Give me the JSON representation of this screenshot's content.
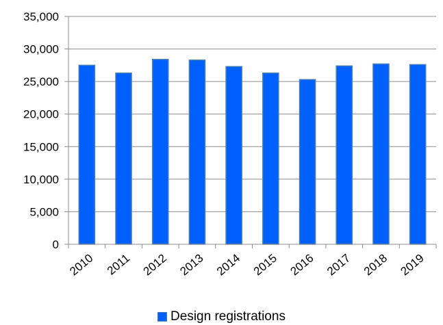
{
  "chart_data": {
    "type": "bar",
    "categories": [
      "2010",
      "2011",
      "2012",
      "2013",
      "2014",
      "2015",
      "2016",
      "2017",
      "2018",
      "2019"
    ],
    "series": [
      {
        "name": "Design registrations",
        "values": [
          27500,
          26300,
          28400,
          28300,
          27300,
          26300,
          25300,
          27400,
          27700,
          27600
        ],
        "color": "#0060ff",
        "edge_color": "#4a7fb5"
      }
    ],
    "ylim": [
      0,
      35000
    ],
    "yticks": [
      "0",
      "5,000",
      "10,000",
      "15,000",
      "20,000",
      "25,000",
      "30,000",
      "35,000"
    ],
    "grid": true,
    "legend_position": "bottom"
  }
}
